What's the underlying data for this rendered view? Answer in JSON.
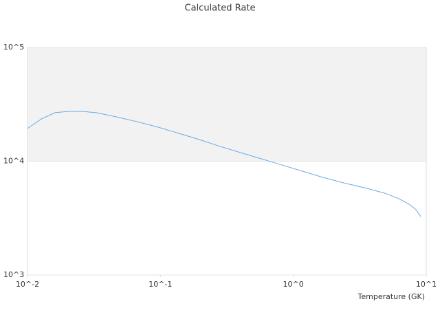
{
  "chart_data": {
    "type": "line",
    "title": "Calculated Rate",
    "x_label": "Temperature (GK)",
    "x": [
      0.01,
      0.0127,
      0.0161,
      0.0204,
      0.0259,
      0.0329,
      0.047,
      0.0673,
      0.0962,
      0.1374,
      0.196,
      0.281,
      0.401,
      0.574,
      0.82,
      1.17,
      1.67,
      2.39,
      3.42,
      4.89,
      6.21,
      7.43,
      8.36,
      9.09
    ],
    "series": [
      {
        "color": "#6aaae4",
        "values": [
          19400,
          23500,
          26700,
          27400,
          27400,
          26700,
          24500,
          22200,
          19900,
          17600,
          15500,
          13500,
          11900,
          10500,
          9270,
          8170,
          7210,
          6450,
          5850,
          5230,
          4690,
          4190,
          3750,
          3260
        ]
      }
    ],
    "xscale": "log",
    "yscale": "log",
    "xlim": [
      0.01,
      10
    ],
    "ylim": [
      1000,
      100000
    ],
    "xticks": [
      {
        "value": 0.01,
        "label": "10^-2"
      },
      {
        "value": 0.1,
        "label": "10^-1"
      },
      {
        "value": 1,
        "label": "10^0"
      },
      {
        "value": 10,
        "label": "10^1"
      }
    ],
    "yticks": [
      {
        "value": 1000,
        "label": "10^3"
      },
      {
        "value": 10000,
        "label": "10^4"
      },
      {
        "value": 100000,
        "label": "10^5"
      }
    ]
  }
}
